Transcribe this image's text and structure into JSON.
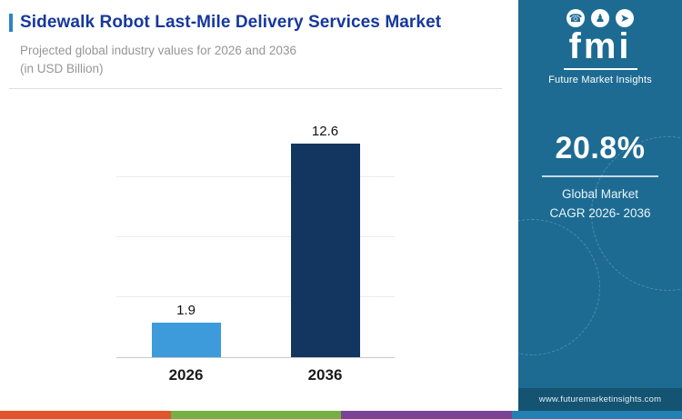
{
  "header": {
    "title": "Sidewalk Robot Last-Mile Delivery Services Market",
    "subtitle_line1": "Projected global industry values for 2026 and 2036",
    "subtitle_line2": "(in USD Billion)"
  },
  "chart_data": {
    "type": "bar",
    "categories": [
      "2026",
      "2036"
    ],
    "values": [
      1.9,
      12.6
    ],
    "title": "Sidewalk Robot Last-Mile Delivery Services Market",
    "subtitle": "Projected global industry values for 2026 and 2036 (in USD Billion)",
    "xlabel": "",
    "ylabel": "USD Billion",
    "ylim": [
      0,
      13
    ],
    "grid": "horizontal-light",
    "legend": "none",
    "bar_colors": [
      "#3d9bdb",
      "#12365f"
    ]
  },
  "sidebar": {
    "logo_icons": [
      {
        "name": "megaphone-icon",
        "glyph": "☎"
      },
      {
        "name": "person-icon",
        "glyph": "♟"
      },
      {
        "name": "rocket-icon",
        "glyph": "➤"
      }
    ],
    "logo_text": "fmi",
    "logo_subtext": "Future Market Insights",
    "stat_value": "20.8%",
    "stat_label_line1": "Global Market",
    "stat_label_line2": "CAGR 2026- 2036",
    "website": "www.futuremarketinsights.com"
  },
  "colors": {
    "title_blue": "#16389b",
    "sidebar_bg": "#1d6b92",
    "website_band": "#145371",
    "bar_2026": "#3d9bdb",
    "bar_2036": "#12365f",
    "stripe": [
      "#e2552c",
      "#76b043",
      "#7b4397",
      "#2380b4"
    ]
  }
}
